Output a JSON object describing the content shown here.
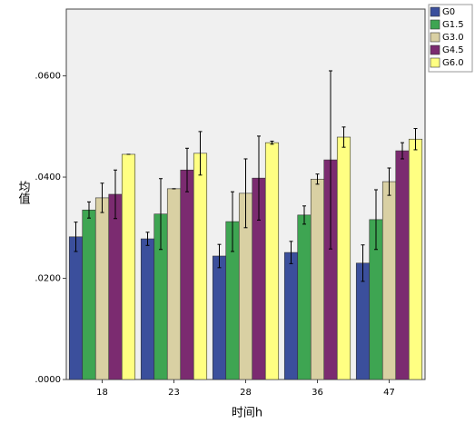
{
  "chart_data": {
    "type": "bar",
    "x_label": "时间h",
    "y_label": "均值",
    "categories": [
      "18",
      "23",
      "28",
      "36",
      "47"
    ],
    "series": [
      {
        "name": "G0",
        "color": "#3b4f9c",
        "values": [
          0.0282,
          0.0278,
          0.0244,
          0.0251,
          0.023
        ],
        "errors": [
          0.0029,
          0.0013,
          0.0023,
          0.0022,
          0.0036
        ]
      },
      {
        "name": "G1.5",
        "color": "#3ea552",
        "values": [
          0.0335,
          0.0327,
          0.0312,
          0.0325,
          0.0316
        ],
        "errors": [
          0.0016,
          0.007,
          0.0059,
          0.0018,
          0.0059
        ]
      },
      {
        "name": "G3.0",
        "color": "#d9d0a3",
        "values": [
          0.0359,
          0.0377,
          0.0368,
          0.0396,
          0.0391
        ],
        "errors": [
          0.0029,
          0,
          0.0068,
          0.001,
          0.0027
        ]
      },
      {
        "name": "G4.5",
        "color": "#7b2b70",
        "values": [
          0.0366,
          0.0414,
          0.0398,
          0.0434,
          0.0452
        ],
        "errors": [
          0.0048,
          0.0043,
          0.0083,
          0.0176,
          0.0016
        ]
      },
      {
        "name": "G6.0",
        "color": "#ffff82",
        "values": [
          0.0445,
          0.0447,
          0.0468,
          0.0479,
          0.0475
        ],
        "errors": [
          0,
          0.0043,
          0.0003,
          0.002,
          0.0021
        ]
      }
    ],
    "ylim": [
      0,
      0.0732
    ],
    "yticks": [
      {
        "value": 0,
        "label": ".0000"
      },
      {
        "value": 0.02,
        "label": ".0200"
      },
      {
        "value": 0.04,
        "label": ".0400"
      },
      {
        "value": 0.06,
        "label": ".0600"
      }
    ],
    "legend": "top-right",
    "background": "#f0f0f0"
  }
}
